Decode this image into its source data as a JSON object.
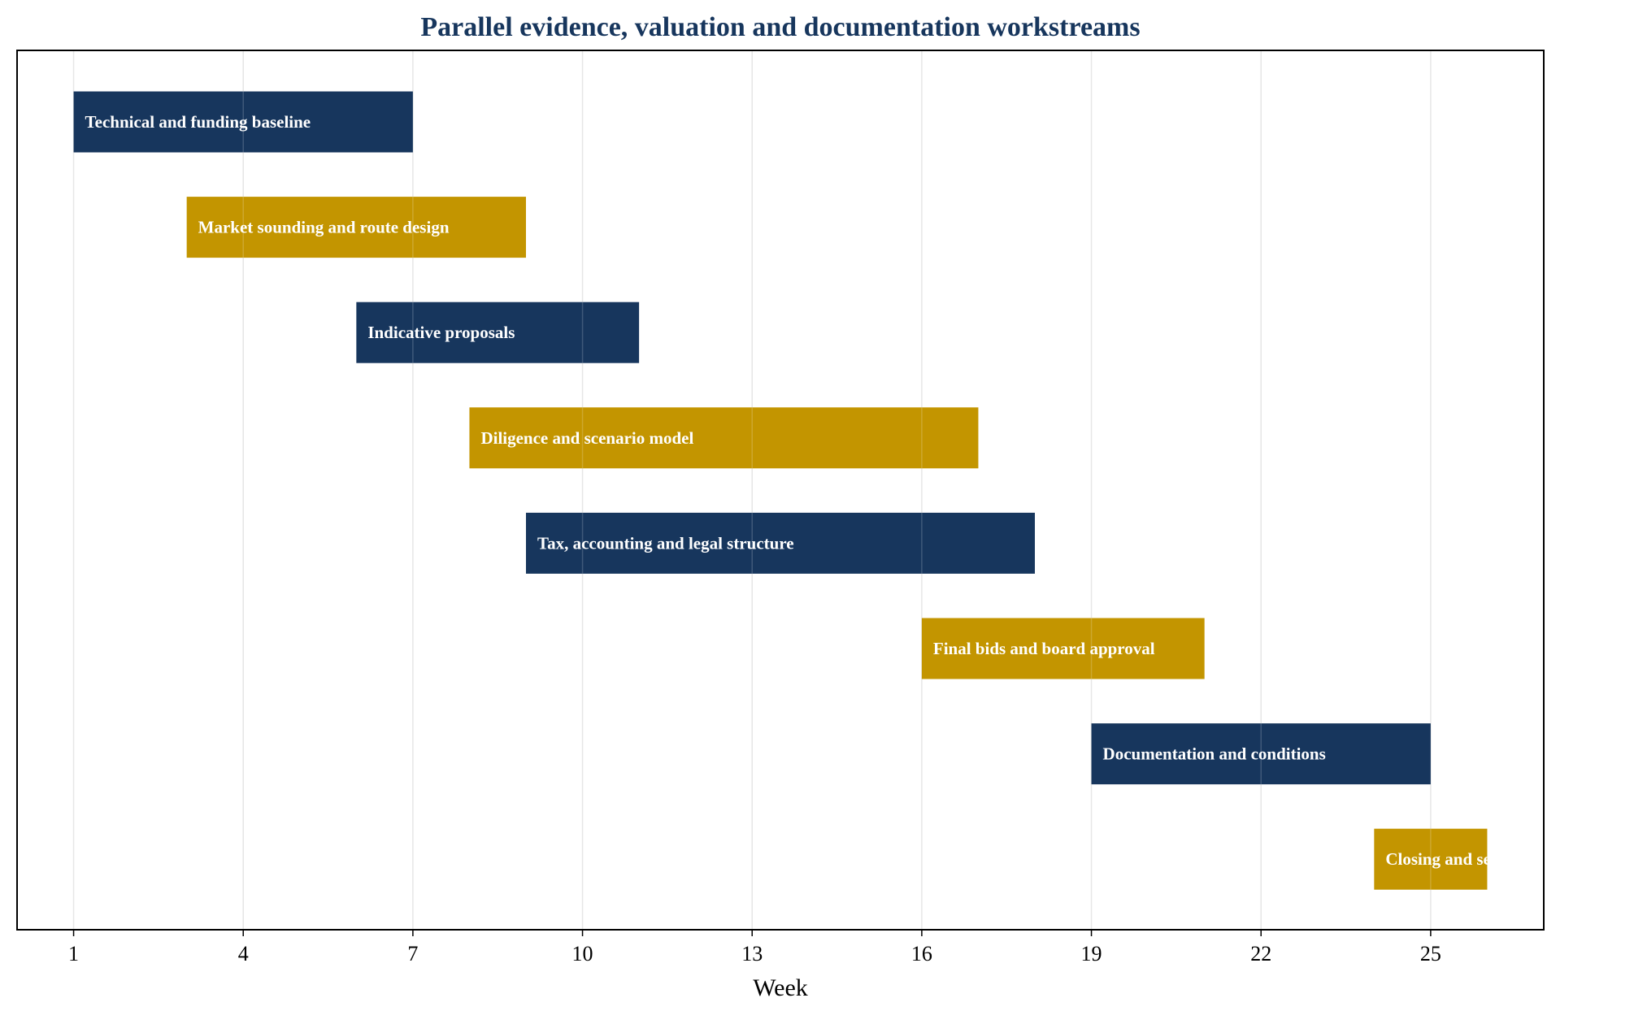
{
  "chart_data": {
    "type": "gantt",
    "title": "Parallel evidence, valuation and documentation workstreams",
    "xlabel": "Week",
    "ylabel": "",
    "xlim": [
      0,
      27
    ],
    "xticks": [
      1,
      4,
      7,
      10,
      13,
      16,
      19,
      22,
      25
    ],
    "grid": true,
    "legend": "none",
    "tasks": [
      {
        "label": "Technical and funding baseline",
        "start": 1,
        "end": 7,
        "color": "#17365d"
      },
      {
        "label": "Market sounding and route design",
        "start": 3,
        "end": 9,
        "color": "#c39500"
      },
      {
        "label": "Indicative proposals",
        "start": 6,
        "end": 11,
        "color": "#17365d"
      },
      {
        "label": "Diligence and scenario model",
        "start": 8,
        "end": 17,
        "color": "#c39500"
      },
      {
        "label": "Tax, accounting and legal structure",
        "start": 9,
        "end": 18,
        "color": "#17365d"
      },
      {
        "label": "Final bids and board approval",
        "start": 16,
        "end": 21,
        "color": "#c39500"
      },
      {
        "label": "Documentation and conditions",
        "start": 19,
        "end": 25,
        "color": "#17365d"
      },
      {
        "label": "Closing and separation",
        "start": 24,
        "end": 26,
        "color": "#c39500"
      }
    ]
  },
  "colors": {
    "title": "#17365d",
    "navy": "#17365d",
    "gold": "#c39500",
    "grid": "#e6e6e6",
    "frame": "#000000"
  }
}
